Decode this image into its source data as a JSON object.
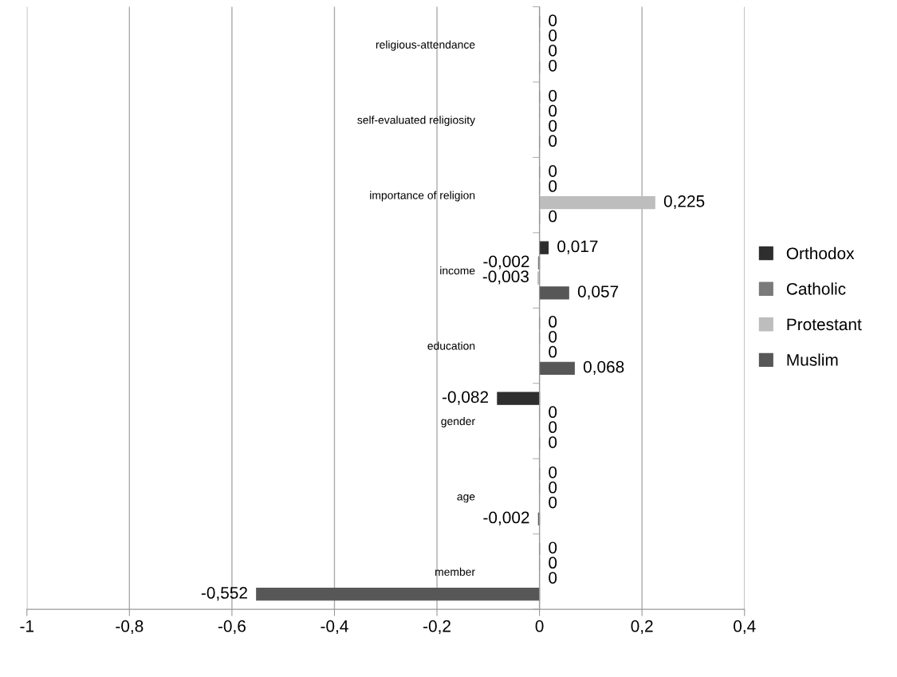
{
  "chart_data": {
    "type": "bar",
    "orientation": "horizontal",
    "categories": [
      "religious-attendance",
      "self-evaluated religiosity",
      "importance of religion",
      "income",
      "education",
      "gender",
      "age",
      "member"
    ],
    "series": [
      {
        "name": "Orthodox",
        "color": "#2e2e2e",
        "values": [
          0,
          0,
          0,
          0.017,
          0,
          -0.082,
          0,
          0
        ],
        "value_labels": [
          "0",
          "0",
          "0",
          "0,017",
          "0",
          "-0,082",
          "0",
          "0"
        ]
      },
      {
        "name": "Catholic",
        "color": "#7a7a7a",
        "values": [
          0,
          0,
          0,
          -0.002,
          0,
          0,
          0,
          0
        ],
        "value_labels": [
          "0",
          "0",
          "0",
          "-0,002",
          "0",
          "0",
          "0",
          "0"
        ]
      },
      {
        "name": "Protestant",
        "color": "#bdbdbd",
        "values": [
          0,
          0,
          0.225,
          -0.003,
          0,
          0,
          0,
          0
        ],
        "value_labels": [
          "0",
          "0",
          "0,225",
          "-0,003",
          "0",
          "0",
          "0",
          "0"
        ]
      },
      {
        "name": "Muslim",
        "color": "#575757",
        "values": [
          0,
          0,
          0,
          0.057,
          0.068,
          0,
          -0.002,
          -0.552
        ],
        "value_labels": [
          "0",
          "0",
          "0",
          "0,057",
          "0,068",
          "0",
          "-0,002",
          "-0,552"
        ]
      }
    ],
    "xlim": [
      -1,
      0.4
    ],
    "xticks": [
      {
        "value": -1,
        "label": "-1"
      },
      {
        "value": -0.8,
        "label": "-0,8"
      },
      {
        "value": -0.6,
        "label": "-0,6"
      },
      {
        "value": -0.4,
        "label": "-0,4"
      },
      {
        "value": -0.2,
        "label": "-0,2"
      },
      {
        "value": 0,
        "label": "0"
      },
      {
        "value": 0.2,
        "label": "0,2"
      },
      {
        "value": 0.4,
        "label": "0,4"
      }
    ],
    "grid": "x",
    "legend": "right"
  }
}
